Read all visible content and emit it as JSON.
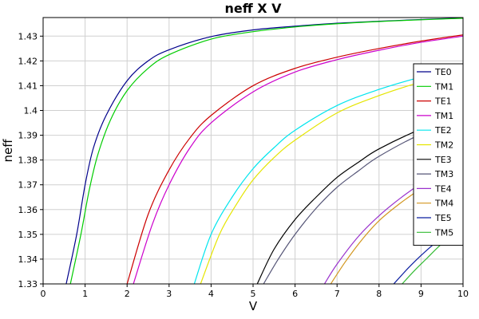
{
  "chart_data": {
    "type": "line",
    "title": "neff X V",
    "xlabel": "V",
    "ylabel": "neff",
    "xlim": [
      0,
      10
    ],
    "ylim": [
      1.33,
      1.4375
    ],
    "x_ticks": [
      0,
      1,
      2,
      3,
      4,
      5,
      6,
      7,
      8,
      9,
      10
    ],
    "y_ticks": [
      1.33,
      1.34,
      1.35,
      1.36,
      1.37,
      1.38,
      1.39,
      1.4,
      1.41,
      1.42,
      1.43
    ],
    "y_tick_labels": [
      "1.33",
      "1.34",
      "1.35",
      "1.36",
      "1.37",
      "1.38",
      "1.39",
      "1.4",
      "1.41",
      "1.42",
      "1.43"
    ],
    "grid": true,
    "legend_position": "right",
    "series": [
      {
        "name": "TE0",
        "color": "#00008b",
        "x": [
          0.55,
          0.8,
          1.0,
          1.2,
          1.5,
          2.0,
          2.5,
          3.0,
          4.0,
          5.0,
          6.0,
          7.0,
          8.0,
          9.0,
          10.0
        ],
        "y": [
          1.33,
          1.35,
          1.37,
          1.385,
          1.398,
          1.412,
          1.42,
          1.4245,
          1.4298,
          1.4325,
          1.434,
          1.4352,
          1.436,
          1.4367,
          1.4373
        ]
      },
      {
        "name": "TM1",
        "color": "#00cc00",
        "x": [
          0.65,
          0.9,
          1.1,
          1.3,
          1.6,
          2.0,
          2.5,
          3.0,
          4.0,
          5.0,
          6.0,
          7.0,
          8.0,
          9.0,
          10.0
        ],
        "y": [
          1.33,
          1.35,
          1.368,
          1.382,
          1.396,
          1.408,
          1.417,
          1.4225,
          1.4288,
          1.4318,
          1.4337,
          1.435,
          1.4359,
          1.4366,
          1.4372
        ]
      },
      {
        "name": "TE1",
        "color": "#cc0000",
        "x": [
          2.0,
          2.5,
          3.0,
          3.5,
          4.0,
          5.0,
          6.0,
          7.0,
          8.0,
          9.0,
          10.0
        ],
        "y": [
          1.33,
          1.358,
          1.376,
          1.389,
          1.398,
          1.41,
          1.417,
          1.4215,
          1.425,
          1.428,
          1.4305
        ]
      },
      {
        "name": "TM1",
        "color": "#cc00cc",
        "x": [
          2.15,
          2.6,
          3.0,
          3.5,
          4.0,
          5.0,
          6.0,
          7.0,
          8.0,
          9.0,
          10.0
        ],
        "y": [
          1.33,
          1.354,
          1.37,
          1.385,
          1.395,
          1.4075,
          1.4155,
          1.4205,
          1.4243,
          1.4275,
          1.43
        ]
      },
      {
        "name": "TE2",
        "color": "#00e5ee",
        "x": [
          3.6,
          4.0,
          4.5,
          5.0,
          5.5,
          6.0,
          7.0,
          8.0,
          9.0,
          10.0
        ],
        "y": [
          1.33,
          1.35,
          1.365,
          1.3765,
          1.385,
          1.392,
          1.402,
          1.4085,
          1.4135,
          1.4175
        ]
      },
      {
        "name": "TM2",
        "color": "#e5e500",
        "x": [
          3.75,
          4.2,
          4.6,
          5.0,
          5.5,
          6.0,
          7.0,
          8.0,
          9.0,
          10.0
        ],
        "y": [
          1.33,
          1.35,
          1.362,
          1.372,
          1.381,
          1.388,
          1.399,
          1.406,
          1.4115,
          1.416
        ]
      },
      {
        "name": "TE3",
        "color": "#000000",
        "x": [
          5.1,
          5.5,
          6.0,
          6.5,
          7.0,
          7.5,
          8.0,
          9.0,
          10.0
        ],
        "y": [
          1.33,
          1.344,
          1.356,
          1.365,
          1.373,
          1.379,
          1.3845,
          1.3925,
          1.3985
        ]
      },
      {
        "name": "TM3",
        "color": "#555577",
        "x": [
          5.25,
          5.6,
          6.0,
          6.5,
          7.0,
          7.5,
          8.0,
          9.0,
          10.0
        ],
        "y": [
          1.33,
          1.34,
          1.35,
          1.3605,
          1.369,
          1.3755,
          1.3815,
          1.3905,
          1.397
        ]
      },
      {
        "name": "TE4",
        "color": "#9a32cd",
        "x": [
          6.7,
          7.0,
          7.5,
          8.0,
          8.5,
          9.0,
          9.5,
          10.0
        ],
        "y": [
          1.33,
          1.338,
          1.349,
          1.3575,
          1.3645,
          1.3705,
          1.3755,
          1.38
        ]
      },
      {
        "name": "TM4",
        "color": "#d2961e",
        "x": [
          6.85,
          7.2,
          7.6,
          8.0,
          8.5,
          9.0,
          9.5,
          10.0
        ],
        "y": [
          1.33,
          1.339,
          1.348,
          1.3555,
          1.3625,
          1.3685,
          1.374,
          1.3785
        ]
      },
      {
        "name": "TE5",
        "color": "#0a1ea0",
        "x": [
          8.35,
          8.7,
          9.0,
          9.3,
          9.6,
          10.0
        ],
        "y": [
          1.33,
          1.3365,
          1.3415,
          1.346,
          1.35,
          1.3545
        ]
      },
      {
        "name": "TM5",
        "color": "#33bb33",
        "x": [
          8.55,
          8.85,
          9.15,
          9.45,
          9.75,
          10.0
        ],
        "y": [
          1.33,
          1.3355,
          1.3405,
          1.3455,
          1.3495,
          1.3525
        ]
      }
    ]
  }
}
